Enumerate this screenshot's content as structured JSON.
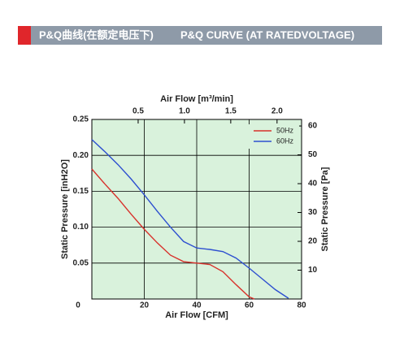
{
  "header": {
    "title_cn": "P&Q曲线(在额定电压下)",
    "title_en": "P&Q CURVE (AT RATEDVOLTAGE)"
  },
  "chart_data": {
    "type": "line",
    "xlabel": "Air Flow  [CFM]",
    "x2label": "Air Flow  [m³/min]",
    "ylabel": "Static Pressure [inH2O]",
    "y2label": "Static Pressure [Pa]",
    "xlim": [
      0,
      80
    ],
    "xticks": [
      0,
      20,
      40,
      60,
      80
    ],
    "x2lim": [
      0,
      2.265
    ],
    "x2ticks": [
      0.5,
      {
        "value": 1,
        "label": "1.0"
      },
      1.5,
      {
        "value": 2,
        "label": "2.0"
      }
    ],
    "ylim": [
      0,
      0.25
    ],
    "yticks": [
      0.05,
      {
        "value": 0.1,
        "label": "0.10"
      },
      0.15,
      {
        "value": 0.2,
        "label": "0.20"
      },
      0.25
    ],
    "y2lim": [
      0,
      62.27
    ],
    "y2ticks": [
      10,
      20,
      30,
      40,
      50,
      60
    ],
    "grid": true,
    "legend": "upper right",
    "background": "#d9f2dc",
    "series": [
      {
        "name": "50Hz",
        "color": "#d8312b",
        "x": [
          0,
          5,
          10,
          15,
          20,
          25,
          30,
          35,
          40,
          45,
          50,
          55,
          60,
          62
        ],
        "values": [
          0.181,
          0.16,
          0.14,
          0.118,
          0.097,
          0.078,
          0.061,
          0.052,
          0.05,
          0.048,
          0.038,
          0.02,
          0.003,
          0
        ]
      },
      {
        "name": "60Hz",
        "color": "#2d4fd0",
        "x": [
          0,
          5,
          10,
          15,
          20,
          25,
          30,
          35,
          40,
          45,
          50,
          55,
          60,
          65,
          70,
          75
        ],
        "values": [
          0.222,
          0.205,
          0.187,
          0.167,
          0.145,
          0.122,
          0.1,
          0.08,
          0.071,
          0.069,
          0.066,
          0.057,
          0.043,
          0.028,
          0.013,
          0.001
        ]
      }
    ]
  }
}
